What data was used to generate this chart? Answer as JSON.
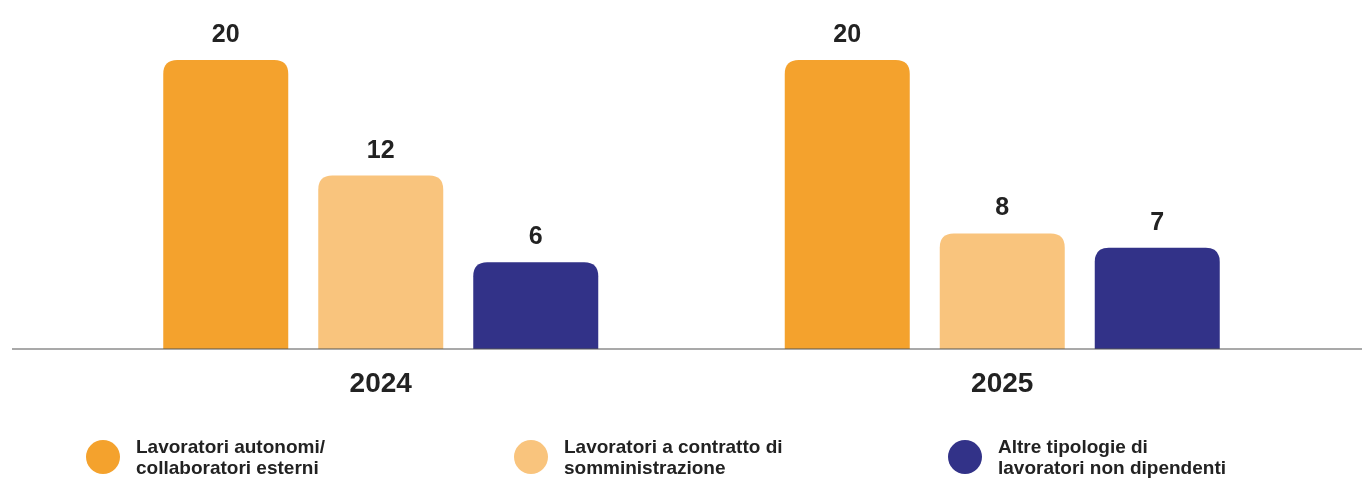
{
  "chart_data": {
    "type": "bar",
    "categories": [
      "2024",
      "2025"
    ],
    "series": [
      {
        "name": "Lavoratori autonomi/ collaboratori esterni",
        "color": "#f4a22d",
        "values": [
          20,
          20
        ]
      },
      {
        "name": "Lavoratori a contratto di somministrazione",
        "color": "#f9c47d",
        "values": [
          12,
          8
        ]
      },
      {
        "name": "Altre tipologie di lavoratori non dipendenti",
        "color": "#323288",
        "values": [
          6,
          7
        ]
      }
    ],
    "data_labels": true,
    "legend": "bottom"
  }
}
